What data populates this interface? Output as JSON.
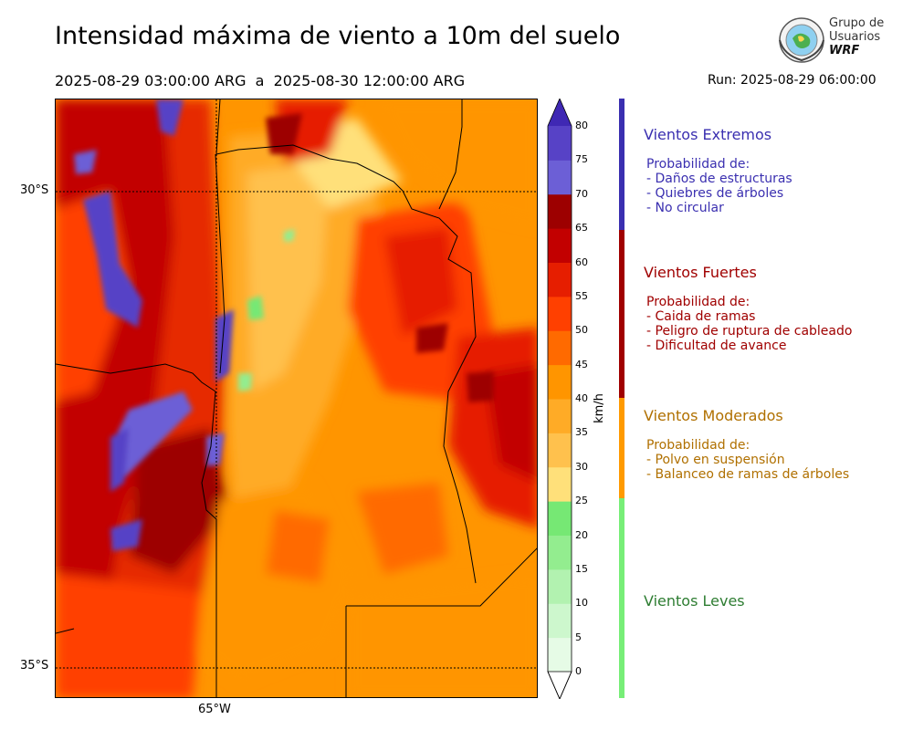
{
  "header": {
    "title": "Intensidad máxima de viento a 10m del suelo",
    "period": "2025-08-29 03:00:00 ARG  a  2025-08-30 12:00:00 ARG",
    "run": "Run: 2025-08-29 06:00:00"
  },
  "logo": {
    "line1": "Grupo de",
    "line2": "Usuarios",
    "line3": "WRF"
  },
  "map": {
    "lat_labels": [
      "30°S",
      "35°S"
    ],
    "lon_labels": [
      "65°W"
    ],
    "graticule": "dotted"
  },
  "colorbar": {
    "unit": "km/h",
    "ticks": [
      "0",
      "5",
      "10",
      "15",
      "20",
      "25",
      "30",
      "35",
      "40",
      "45",
      "50",
      "55",
      "60",
      "65",
      "70",
      "75",
      "80"
    ],
    "colors": [
      "#e6fbe6",
      "#cdf7cd",
      "#b2f2b0",
      "#93ed8f",
      "#76e874",
      "#ffe07a",
      "#ffc14d",
      "#ffab26",
      "#ff9500",
      "#ff6a00",
      "#ff4000",
      "#e61e00",
      "#c20000",
      "#9d0000",
      "#6c5fd6",
      "#5742c6",
      "#3f28b4"
    ],
    "extend": "both"
  },
  "categories": [
    {
      "title": "Vientos Extremos",
      "color": "#3a2fb0",
      "lines": [
        "Probabilidad de:",
        "- Daños de estructuras",
        "- Quiebres de árboles",
        "- No circular"
      ]
    },
    {
      "title": "Vientos Fuertes",
      "color": "#a00000",
      "lines": [
        "Probabilidad de:",
        "- Caida de ramas",
        "- Peligro de ruptura de cableado",
        "- Dificultad de avance"
      ]
    },
    {
      "title": "Vientos Moderados",
      "color": "#b07000",
      "band_color": "#ff9a00",
      "lines": [
        "Probabilidad de:",
        "- Polvo en suspensión",
        "- Balanceo de ramas de árboles"
      ]
    },
    {
      "title": "Vientos Leves",
      "color": "#2e7d32",
      "band_color": "#77ee77",
      "lines": []
    }
  ]
}
